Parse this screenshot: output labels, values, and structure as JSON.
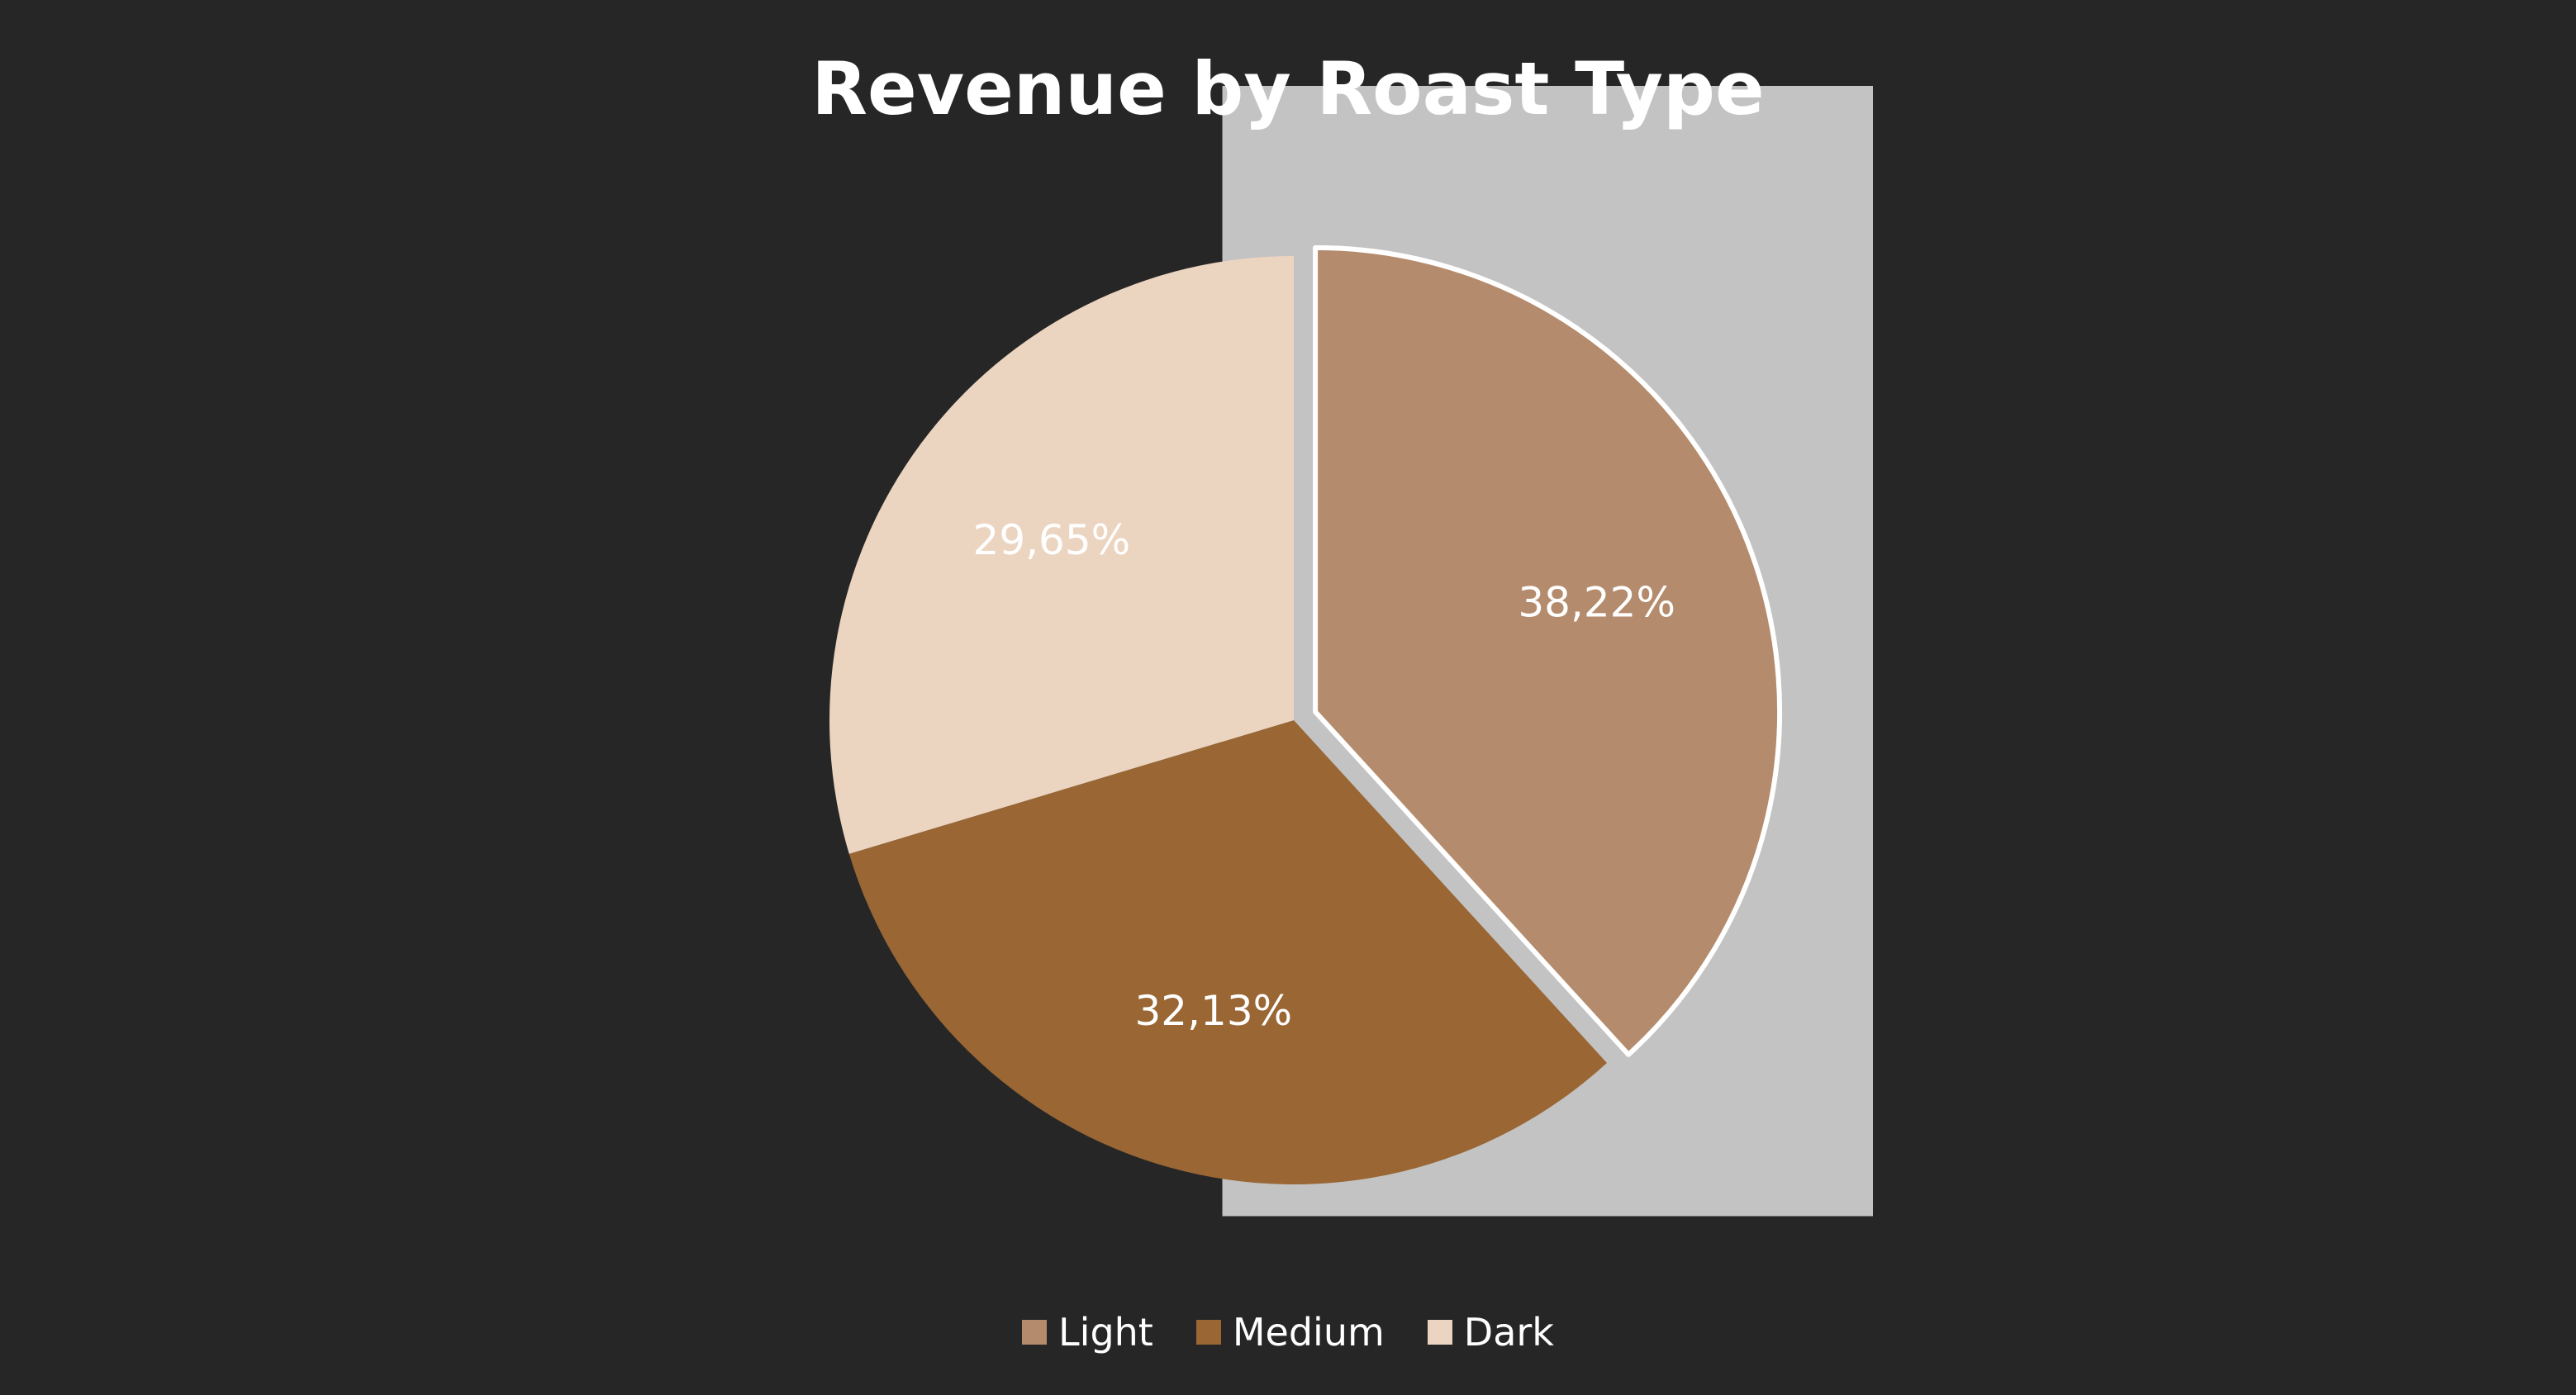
{
  "chart_data": {
    "type": "pie",
    "title": "Revenue by Roast Type",
    "slices": [
      {
        "label": "Light",
        "value": 38.22,
        "display": "38,22%",
        "color": "#b48b6c",
        "exploded": true
      },
      {
        "label": "Medium",
        "value": 32.13,
        "display": "32,13%",
        "color": "#996634"
      },
      {
        "label": "Dark",
        "value": 29.65,
        "display": "29,65%",
        "color": "#ecd5c0"
      }
    ],
    "legend_position": "bottom",
    "background": "#262626"
  }
}
